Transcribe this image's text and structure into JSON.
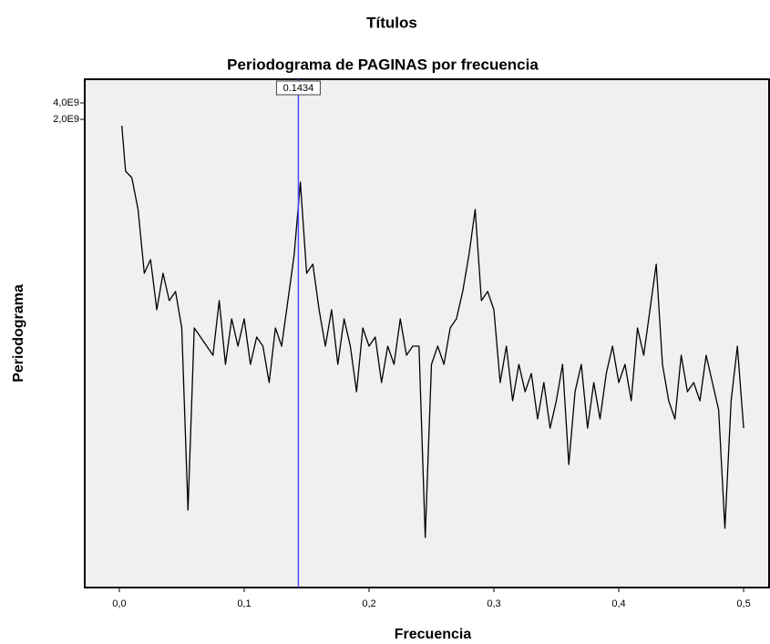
{
  "chart_data": {
    "type": "line",
    "title": "Títulos",
    "subtitle": "Periodograma de PAGINAS por frecuencia",
    "xlabel": "Frecuencia",
    "ylabel": "Periodograma",
    "log_y": true,
    "color": "#000000",
    "reference_line": 0.1434,
    "reference_color": "#4a4aff",
    "x": [
      0.002,
      0.005,
      0.01,
      0.015,
      0.02,
      0.025,
      0.03,
      0.035,
      0.04,
      0.045,
      0.05,
      0.055,
      0.06,
      0.065,
      0.07,
      0.075,
      0.08,
      0.085,
      0.09,
      0.095,
      0.1,
      0.105,
      0.11,
      0.115,
      0.12,
      0.125,
      0.13,
      0.135,
      0.14,
      0.145,
      0.15,
      0.155,
      0.16,
      0.165,
      0.17,
      0.175,
      0.18,
      0.185,
      0.19,
      0.195,
      0.2,
      0.205,
      0.21,
      0.215,
      0.22,
      0.225,
      0.23,
      0.235,
      0.24,
      0.245,
      0.25,
      0.255,
      0.26,
      0.265,
      0.27,
      0.275,
      0.28,
      0.285,
      0.29,
      0.295,
      0.3,
      0.305,
      0.31,
      0.315,
      0.32,
      0.325,
      0.33,
      0.335,
      0.34,
      0.345,
      0.35,
      0.355,
      0.36,
      0.365,
      0.37,
      0.375,
      0.38,
      0.385,
      0.39,
      0.395,
      0.4,
      0.405,
      0.41,
      0.415,
      0.42,
      0.425,
      0.43,
      0.435,
      0.44,
      0.445,
      0.45,
      0.455,
      0.46,
      0.465,
      0.47,
      0.475,
      0.48,
      0.485,
      0.49,
      0.495,
      0.5
    ],
    "values": [
      1530000000.0,
      225000000.0,
      172000000.0,
      44900000.0,
      3060000.0,
      5440000.0,
      659000.0,
      3060000.0,
      967000.0,
      1420000.0,
      306000.0,
      142,
      306000.0,
      208000.0,
      142000.0,
      96700.0,
      967000.0,
      65900.0,
      449000.0,
      142000.0,
      449000.0,
      65900.0,
      208000.0,
      142000.0,
      30600.0,
      306000.0,
      142000.0,
      967000.0,
      6590000.0,
      142000000.0,
      3060000.0,
      4490000.0,
      659000.0,
      142000.0,
      659000.0,
      65900.0,
      449000.0,
      142000.0,
      20800.0,
      306000.0,
      142000.0,
      208000.0,
      30600.0,
      142000.0,
      65900.0,
      449000.0,
      96700.0,
      142000.0,
      142000.0,
      44.9,
      65900.0,
      142000.0,
      65900.0,
      306000.0,
      449000.0,
      1420000.0,
      6590000.0,
      44900000.0,
      967000.0,
      1420000.0,
      659000.0,
      30600.0,
      142000.0,
      14200.0,
      65900.0,
      20800.0,
      44900.0,
      6590.0,
      30600.0,
      4490.0,
      14200.0,
      65900.0,
      967,
      20800.0,
      65900.0,
      4490.0,
      30600.0,
      6590.0,
      44900.0,
      142000.0,
      30600.0,
      65900.0,
      14200.0,
      306000.0,
      96700.0,
      659000.0,
      4490000.0,
      65900.0,
      14200.0,
      6590.0,
      96700.0,
      20800.0,
      30600.0,
      14200.0,
      96700.0,
      30600.0,
      9670.0,
      65.9,
      14200.0,
      142000.0,
      4490.0
    ],
    "xlim": [
      -0.0277,
      0.5204
    ],
    "ylim": [
      5.44,
      10850000000.0
    ],
    "xticks": [
      {
        "value": 0,
        "label": "0,0"
      },
      {
        "value": 0.1,
        "label": "0,1"
      },
      {
        "value": 0.2,
        "label": "0,2"
      },
      {
        "value": 0.3,
        "label": "0,3"
      },
      {
        "value": 0.4,
        "label": "0,4"
      },
      {
        "value": 0.5,
        "label": "0,5"
      }
    ],
    "yticks": [
      {
        "value": 4000000000.0,
        "label": "4,0E9"
      },
      {
        "value": 2000000000.0,
        "label": "2,0E9"
      }
    ],
    "grid": false
  }
}
